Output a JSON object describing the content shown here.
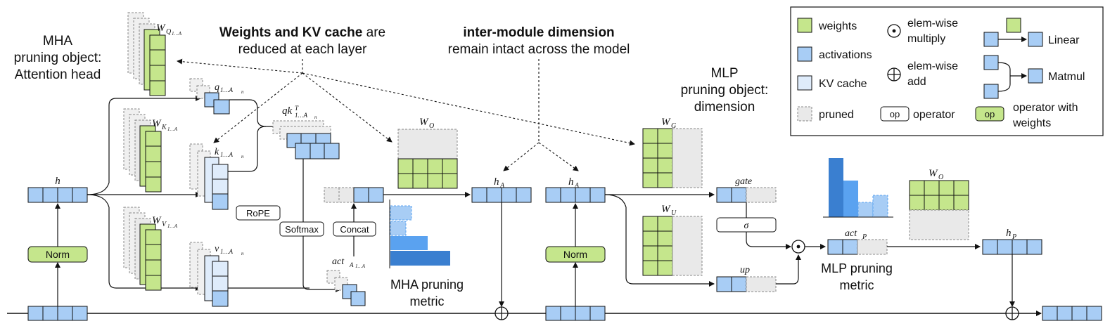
{
  "annotations": {
    "mha_title": [
      "MHA",
      "pruning object:",
      "Attention head"
    ],
    "weights_kv_bold": "Weights and KV cache",
    "weights_kv_rest": " are",
    "weights_kv_line2": "reduced at each layer",
    "inter_module_bold": "inter-module dimension",
    "inter_module_line2": "remain intact across the model",
    "mlp_title": [
      "MLP",
      "pruning object:",
      "dimension"
    ],
    "mha_metric": [
      "MHA pruning",
      "metric"
    ],
    "mlp_metric": [
      "MLP pruning",
      "metric"
    ]
  },
  "operators": {
    "norm": "Norm",
    "rope": "RoPE",
    "softmax": "Softmax",
    "concat": "Concat",
    "sigma": "σ"
  },
  "symbols": {
    "h": "h",
    "W_Q": "W",
    "W_Q_sub": "Q",
    "W_Q_subsub": "1…A",
    "W_Q_n": "n",
    "W_K": "W",
    "W_K_sub": "K",
    "W_V": "W",
    "W_V_sub": "V",
    "q": "q",
    "k": "k",
    "v": "v",
    "idx": "1…A",
    "n": "n",
    "qk": "qk",
    "qk_sup": "T",
    "act": "act",
    "act_sub": "A",
    "W_O": "W",
    "W_O_sub": "O",
    "h_A": "h",
    "h_A_sub": "A",
    "W_G": "W",
    "W_G_sub": "G",
    "W_U": "W",
    "W_U_sub": "U",
    "gate": "gate",
    "up": "up",
    "act_P": "act",
    "act_P_sub": "P",
    "h_P": "h",
    "h_P_sub": "P"
  },
  "legend": {
    "weights": "weights",
    "activations": "activations",
    "kv_cache": "KV cache",
    "pruned": "pruned",
    "elem_mul": [
      "elem-wise",
      "multiply"
    ],
    "elem_add": [
      "elem-wise",
      "add"
    ],
    "op_box": "op",
    "operator": "operator",
    "op_weights_box": "op",
    "operator_with_weights": [
      "operator with",
      "weights"
    ],
    "linear": "Linear",
    "matmul": "Matmul"
  },
  "colors": {
    "weights": "#c5e68c",
    "activations": "#a8cdf5",
    "kv_cache": "#dfecfb",
    "pruned": "#e9e9e9",
    "bar_dark": "#3a7fd0",
    "bar_mid": "#5aa2f0",
    "bar_light": "#a8cdf5"
  }
}
